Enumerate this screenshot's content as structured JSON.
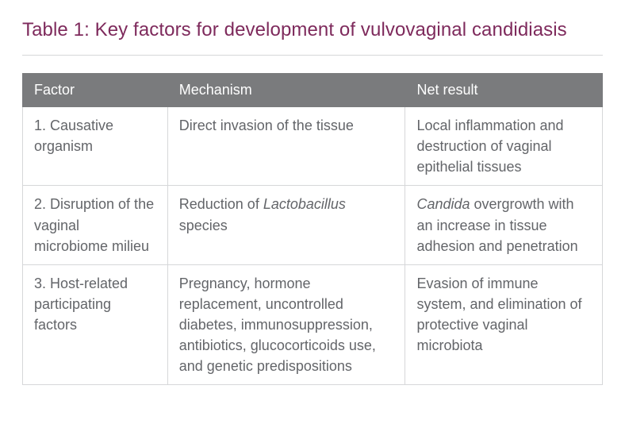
{
  "title": "Table 1: Key factors for development of vulvovaginal candidiasis",
  "colors": {
    "title": "#7e2a5c",
    "hr": "#d6d7d9",
    "header_bg": "#7a7b7d",
    "header_text": "#ffffff",
    "cell_text": "#636569",
    "cell_border": "#d6d7d9"
  },
  "typography": {
    "title_fontsize": 24,
    "header_fontsize": 18,
    "cell_fontsize": 18,
    "font_family": "Helvetica Neue, Helvetica, Arial, sans-serif"
  },
  "table": {
    "type": "table",
    "col_widths_pct": [
      25,
      41,
      34
    ],
    "columns": [
      "Factor",
      "Mechanism",
      "Net result"
    ],
    "rows": [
      {
        "factor": "1. Causative organism",
        "mechanism": "Direct invasion of the tissue",
        "result": "Local inflammation and destruction of vaginal epithelial tissues"
      },
      {
        "factor": "2. Disruption of the vaginal microbiome milieu",
        "mechanism_pre": "Reduction of ",
        "mechanism_em": "Lactobacillus",
        "mechanism_post": " species",
        "result_em": "Candida",
        "result_post": " overgrowth with an increase in tissue adhesion and penetration"
      },
      {
        "factor": "3. Host-related participating factors",
        "mechanism": "Pregnancy, hormone replacement, uncontrolled diabetes, immunosuppression, antibiotics, glucocorticoids use, and genetic predispositions",
        "result": "Evasion of immune system, and elimination of protective vaginal microbiota"
      }
    ]
  }
}
